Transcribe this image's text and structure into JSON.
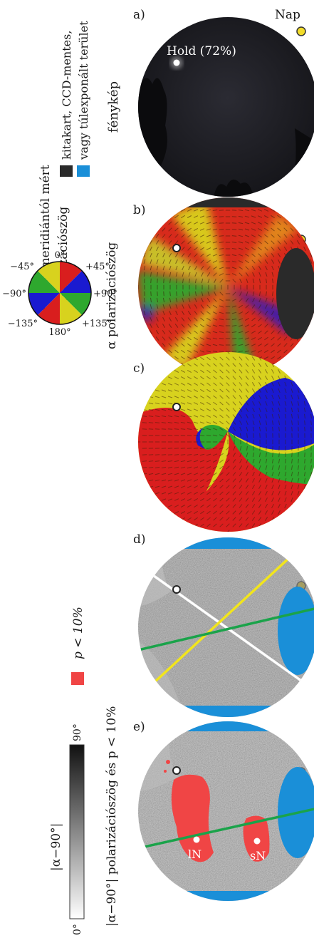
{
  "panels": [
    {
      "letter": "a)",
      "kind": "photo"
    },
    {
      "letter": "b)",
      "kind": "measured"
    },
    {
      "letter": "c)",
      "kind": "model"
    },
    {
      "letter": "d)",
      "kind": "deviation-lines"
    },
    {
      "letter": "e)",
      "kind": "deviation-points"
    }
  ],
  "labels": {
    "sun": "Nap",
    "moon": "Hold (72%)",
    "photo": "fénykép",
    "occluded_1": "kitakart, CCD-mentes,",
    "occluded_2": "vagy túlexponált terület",
    "measured_1": "a helyi meridiántól mért",
    "measured_2": "α polarizációszög",
    "model": "α polarizációszög",
    "deviation": "|α−90°| polarizációszög és p < 10%",
    "deviation_colorbar": "|α−90°|",
    "p_legend": "p < 10%",
    "neutral_left": "lN",
    "neutral_right": "sN"
  },
  "color_wheel": {
    "top": "0°",
    "upper_left": "−45°",
    "upper_right": "+45°",
    "left": "−90°",
    "right": "+90°",
    "lower_left": "−135°",
    "lower_right": "+135°",
    "bottom": "180°"
  },
  "colorbar": {
    "min": "0°",
    "max": "90°"
  },
  "colors": {
    "sky_dark": "#1c1c22",
    "occluded": "#2a2a2a",
    "overexposed": "#1a8fd8",
    "sun": "#f2dc2a",
    "p_low": "#f04545",
    "line_white": "#ffffff",
    "line_yellow": "#f2e51c",
    "line_green": "#1aa34a",
    "red": "#d91e1e",
    "yellow": "#d8d21e",
    "green": "#2ea82e",
    "blue": "#1a1ad0"
  }
}
